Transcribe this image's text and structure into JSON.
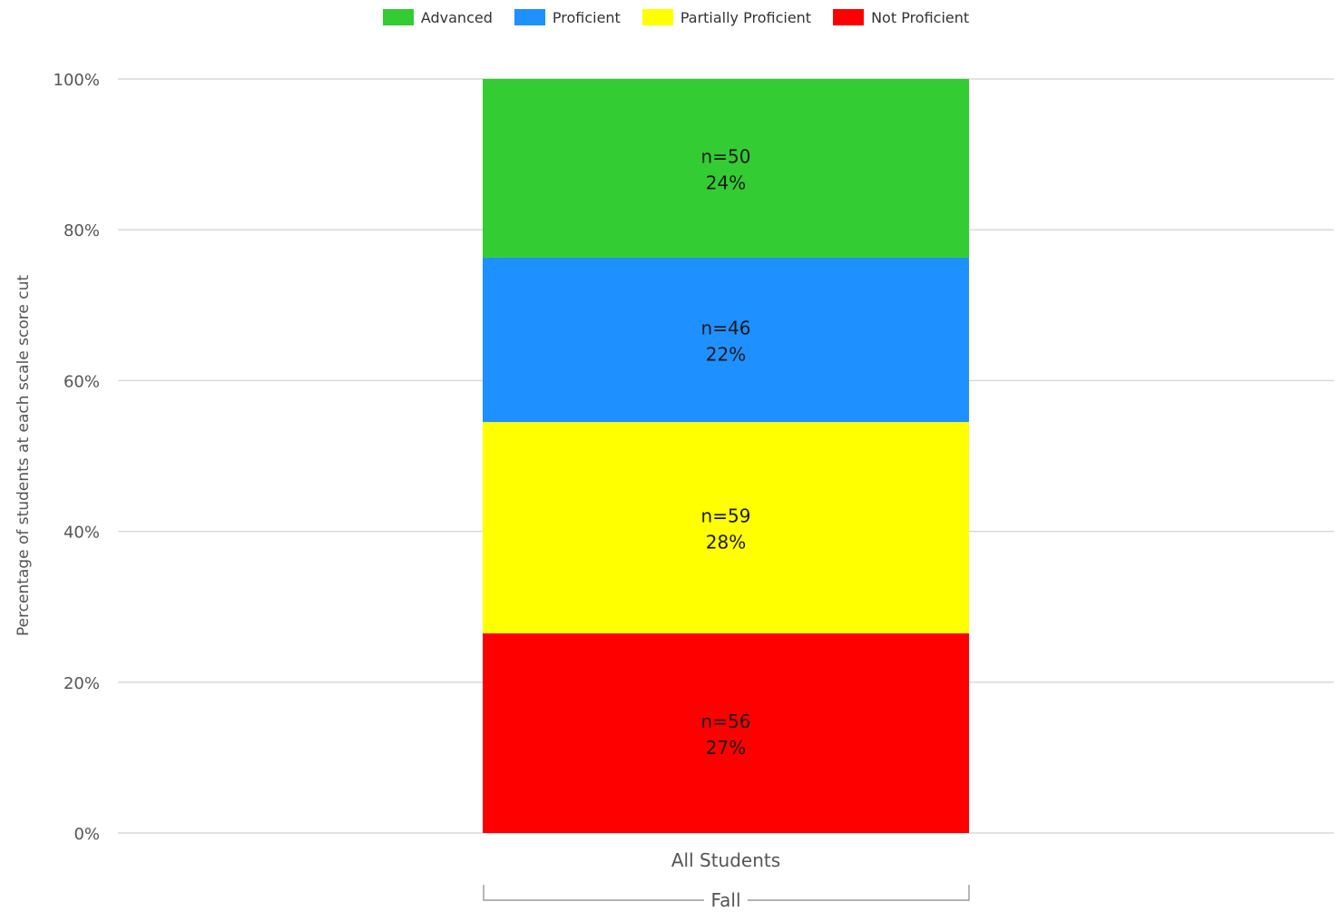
{
  "chart_data": {
    "type": "bar",
    "stacked": true,
    "ylabel": "Percentage of students at each scale score cut",
    "ylim": [
      0,
      100
    ],
    "yticks": [
      "0%",
      "20%",
      "40%",
      "60%",
      "80%",
      "100%"
    ],
    "grid": true,
    "legend_position": "top-center",
    "categories": [
      "All Students"
    ],
    "group_label": "Fall",
    "series": [
      {
        "name": "Not Proficient",
        "color": "#ff0000",
        "values": [
          26.5
        ],
        "n_label": "n=56",
        "pct_label": "27%"
      },
      {
        "name": "Partially Proficient",
        "color": "#ffff00",
        "values": [
          28
        ],
        "n_label": "n=59",
        "pct_label": "28%"
      },
      {
        "name": "Proficient",
        "color": "#1e90ff",
        "values": [
          21.8
        ],
        "n_label": "n=46",
        "pct_label": "22%"
      },
      {
        "name": "Advanced",
        "color": "#33cc33",
        "values": [
          23.7
        ],
        "n_label": "n=50",
        "pct_label": "24%"
      }
    ],
    "legend_order": [
      "Advanced",
      "Proficient",
      "Partially Proficient",
      "Not Proficient"
    ]
  }
}
